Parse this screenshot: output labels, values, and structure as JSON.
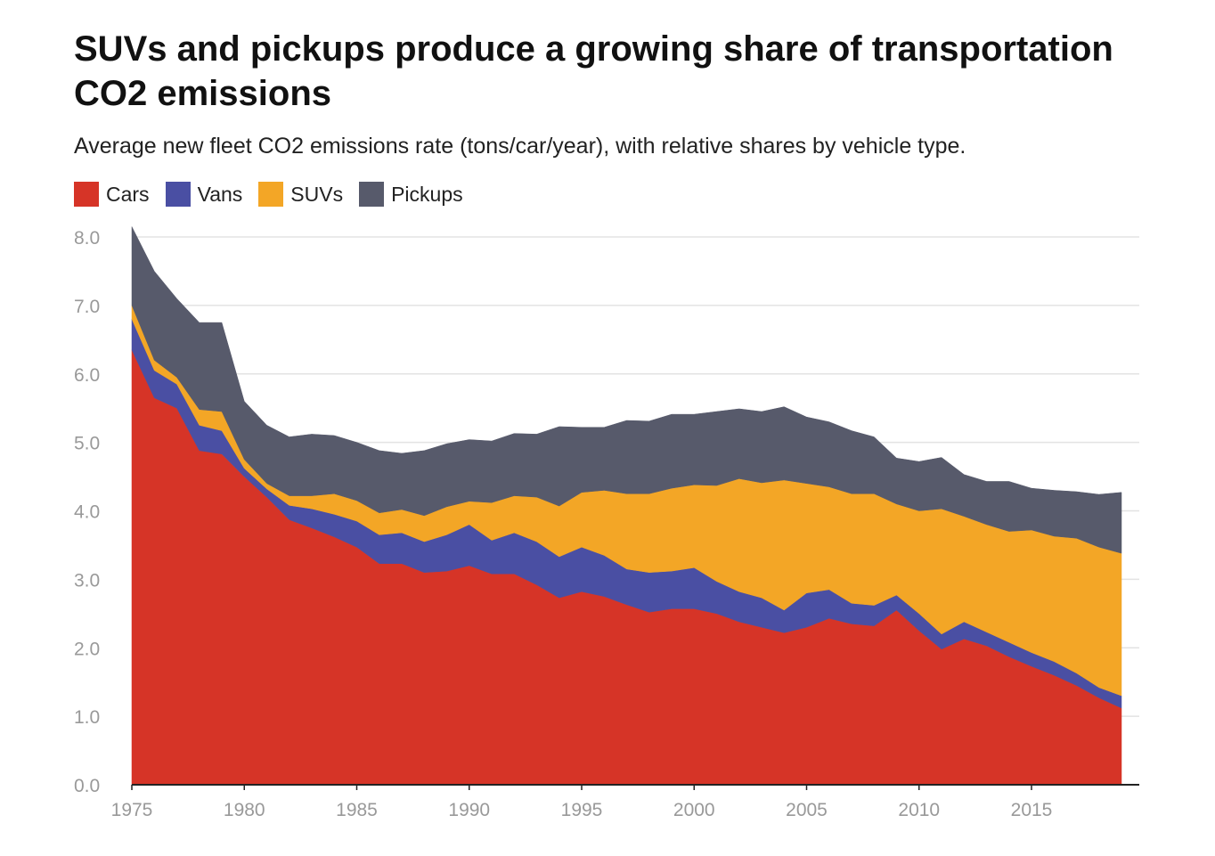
{
  "chart_data": {
    "type": "area",
    "stacked": true,
    "title": "SUVs and pickups produce a growing share of transportation CO2 emissions",
    "subtitle": "Average new fleet CO2 emissions rate (tons/car/year), with relative shares by vehicle type.",
    "xlabel": "",
    "ylabel": "",
    "ylim": [
      0,
      8
    ],
    "xlim": [
      1975,
      2019
    ],
    "grid": true,
    "legend": "top-left",
    "y_ticks": [
      "0.0",
      "1.0",
      "2.0",
      "3.0",
      "4.0",
      "5.0",
      "6.0",
      "7.0",
      "8.0"
    ],
    "x_ticks": [
      "1975",
      "1980",
      "1985",
      "1990",
      "1995",
      "2000",
      "2005",
      "2010",
      "2015"
    ],
    "x": [
      1975,
      1976,
      1977,
      1978,
      1979,
      1980,
      1981,
      1982,
      1983,
      1984,
      1985,
      1986,
      1987,
      1988,
      1989,
      1990,
      1991,
      1992,
      1993,
      1994,
      1995,
      1996,
      1997,
      1998,
      1999,
      2000,
      2001,
      2002,
      2003,
      2004,
      2005,
      2006,
      2007,
      2008,
      2009,
      2010,
      2011,
      2012,
      2013,
      2014,
      2015,
      2016,
      2017,
      2018,
      2019
    ],
    "series": [
      {
        "name": "Cars",
        "color": "#d63427",
        "values": [
          6.35,
          5.65,
          5.5,
          4.88,
          4.83,
          4.5,
          4.2,
          3.87,
          3.75,
          3.62,
          3.47,
          3.23,
          3.23,
          3.1,
          3.12,
          3.2,
          3.08,
          3.08,
          2.92,
          2.73,
          2.82,
          2.75,
          2.63,
          2.52,
          2.57,
          2.57,
          2.5,
          2.38,
          2.3,
          2.22,
          2.3,
          2.43,
          2.35,
          2.32,
          2.55,
          2.25,
          1.98,
          2.13,
          2.03,
          1.87,
          1.73,
          1.6,
          1.45,
          1.27,
          1.12
        ]
      },
      {
        "name": "Vans",
        "color": "#4a4fa3",
        "values": [
          0.45,
          0.4,
          0.35,
          0.37,
          0.34,
          0.12,
          0.12,
          0.21,
          0.28,
          0.33,
          0.38,
          0.42,
          0.45,
          0.45,
          0.53,
          0.6,
          0.49,
          0.6,
          0.63,
          0.6,
          0.65,
          0.6,
          0.52,
          0.58,
          0.55,
          0.6,
          0.47,
          0.44,
          0.43,
          0.33,
          0.5,
          0.42,
          0.3,
          0.3,
          0.22,
          0.25,
          0.22,
          0.25,
          0.2,
          0.21,
          0.2,
          0.2,
          0.18,
          0.15,
          0.18
        ]
      },
      {
        "name": "SUVs",
        "color": "#f3a626",
        "values": [
          0.2,
          0.15,
          0.1,
          0.23,
          0.28,
          0.13,
          0.08,
          0.14,
          0.19,
          0.3,
          0.3,
          0.32,
          0.34,
          0.38,
          0.41,
          0.34,
          0.55,
          0.54,
          0.65,
          0.74,
          0.8,
          0.95,
          1.1,
          1.15,
          1.21,
          1.21,
          1.4,
          1.65,
          1.68,
          1.9,
          1.6,
          1.5,
          1.6,
          1.63,
          1.33,
          1.5,
          1.83,
          1.54,
          1.57,
          1.62,
          1.79,
          1.83,
          1.97,
          2.05,
          2.08
        ]
      },
      {
        "name": "Pickups",
        "color": "#575a6b",
        "values": [
          1.15,
          1.3,
          1.15,
          1.27,
          1.3,
          0.85,
          0.85,
          0.86,
          0.9,
          0.85,
          0.85,
          0.91,
          0.82,
          0.95,
          0.92,
          0.9,
          0.9,
          0.91,
          0.92,
          1.16,
          0.95,
          0.92,
          1.07,
          1.06,
          1.08,
          1.03,
          1.08,
          1.02,
          1.04,
          1.07,
          0.97,
          0.95,
          0.92,
          0.83,
          0.67,
          0.72,
          0.75,
          0.61,
          0.63,
          0.73,
          0.61,
          0.67,
          0.68,
          0.77,
          0.89
        ]
      }
    ]
  }
}
